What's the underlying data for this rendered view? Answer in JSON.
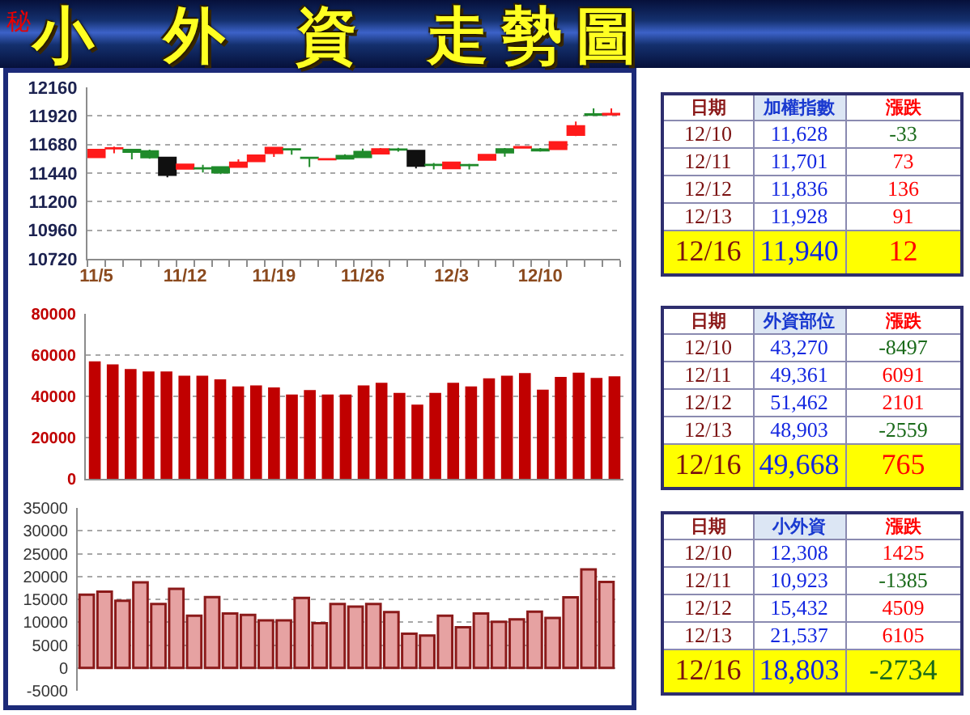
{
  "chart_data": [
    {
      "type": "candlestick",
      "title": "小 外 資 走勢圖",
      "annotations": [
        "秘"
      ],
      "categories": [
        "11/5",
        null,
        null,
        null,
        null,
        "11/12",
        null,
        null,
        null,
        null,
        "11/19",
        null,
        null,
        null,
        null,
        "11/26",
        null,
        null,
        null,
        null,
        "12/3",
        null,
        null,
        null,
        null,
        "12/10",
        null,
        null,
        null,
        null
      ],
      "ohlc": [
        [
          11573,
          11640,
          11570,
          11637
        ],
        [
          11645,
          11663,
          11607,
          11650
        ],
        [
          11637,
          11640,
          11556,
          11616
        ],
        [
          11625,
          11637,
          11560,
          11570
        ],
        [
          11570,
          11575,
          11405,
          11423
        ],
        [
          11475,
          11517,
          11470,
          11513
        ],
        [
          11482,
          11509,
          11445,
          11478
        ],
        [
          11491,
          11495,
          11431,
          11444
        ],
        [
          11491,
          11556,
          11488,
          11530
        ],
        [
          11538,
          11595,
          11535,
          11590
        ],
        [
          11607,
          11660,
          11575,
          11654
        ],
        [
          11642,
          11645,
          11594,
          11637
        ],
        [
          11570,
          11575,
          11491,
          11565
        ],
        [
          11553,
          11562,
          11550,
          11558
        ],
        [
          11586,
          11598,
          11558,
          11560
        ],
        [
          11620,
          11646,
          11570,
          11573
        ],
        [
          11603,
          11650,
          11600,
          11642
        ],
        [
          11640,
          11652,
          11620,
          11635
        ],
        [
          11629,
          11632,
          11479,
          11500
        ],
        [
          11512,
          11525,
          11470,
          11507
        ],
        [
          11479,
          11535,
          11475,
          11530
        ],
        [
          11510,
          11518,
          11470,
          11505
        ],
        [
          11551,
          11600,
          11548,
          11594
        ],
        [
          11642,
          11650,
          11577,
          11612
        ],
        [
          11652,
          11665,
          11645,
          11661
        ],
        [
          11640,
          11650,
          11620,
          11628
        ],
        [
          11640,
          11705,
          11635,
          11701
        ],
        [
          11760,
          11873,
          11750,
          11836
        ],
        [
          11935,
          11984,
          11920,
          11928
        ],
        [
          11930,
          11984,
          11925,
          11940
        ]
      ],
      "colors": [
        "#ff1a1a",
        "#ff1a1a",
        "#1f8a2a",
        "#1f8a2a",
        "#101010",
        "#ff1a1a",
        "#1f8a2a",
        "#1f8a2a",
        "#ff1a1a",
        "#ff1a1a",
        "#ff1a1a",
        "#1f8a2a",
        "#1f8a2a",
        "#ff1a1a",
        "#1f8a2a",
        "#1f8a2a",
        "#ff1a1a",
        "#1f8a2a",
        "#101010",
        "#1f8a2a",
        "#ff1a1a",
        "#1f8a2a",
        "#ff1a1a",
        "#1f8a2a",
        "#ff1a1a",
        "#1f8a2a",
        "#ff1a1a",
        "#ff1a1a",
        "#1f8a2a",
        "#ff1a1a"
      ],
      "ylim": [
        10720,
        12160
      ],
      "yticks": [
        10720,
        10960,
        11200,
        11440,
        11680,
        11920,
        12160
      ],
      "grid": "y"
    },
    {
      "type": "bar",
      "categories": [
        null,
        null,
        null,
        null,
        null,
        null,
        null,
        null,
        null,
        null,
        null,
        null,
        null,
        null,
        null,
        null,
        null,
        null,
        null,
        null,
        null,
        null,
        null,
        null,
        null,
        null,
        null,
        null,
        null,
        null
      ],
      "values": [
        57000,
        55500,
        53200,
        52100,
        52100,
        50000,
        50000,
        48200,
        44800,
        45300,
        44300,
        40900,
        43000,
        40900,
        40900,
        45300,
        46600,
        41700,
        36000,
        41700,
        46600,
        44800,
        48700,
        50000,
        51300,
        43270,
        49361,
        51462,
        48903,
        49668
      ],
      "color": "#c00000",
      "ylim": [
        0,
        80000
      ],
      "yticks": [
        0,
        20000,
        40000,
        60000,
        80000
      ],
      "grid": "y"
    },
    {
      "type": "bar",
      "categories": [
        null,
        null,
        null,
        null,
        null,
        null,
        null,
        null,
        null,
        null,
        null,
        null,
        null,
        null,
        null,
        null,
        null,
        null,
        null,
        null,
        null,
        null,
        null,
        null,
        null,
        null,
        null,
        null,
        null,
        null
      ],
      "values": [
        16000,
        16700,
        14700,
        18700,
        14000,
        17300,
        11400,
        15500,
        11900,
        11600,
        10400,
        10400,
        15300,
        9800,
        14000,
        13400,
        14000,
        12200,
        7500,
        7100,
        11400,
        8900,
        11900,
        10100,
        10600,
        12308,
        10923,
        15432,
        21537,
        18803
      ],
      "color": "#e6a2a2",
      "ylim": [
        -5000,
        35000
      ],
      "yticks": [
        -5000,
        0,
        5000,
        10000,
        15000,
        20000,
        25000,
        30000,
        35000
      ],
      "grid": "y"
    },
    {
      "type": "heatmap",
      "ylabel": "日期",
      "categories": [
        "加權指數",
        "漲跌"
      ],
      "y_categories": [
        "12/10",
        "12/11",
        "12/12",
        "12/13",
        "12/16"
      ],
      "cells": [
        [
          11628,
          -33
        ],
        [
          11701,
          73
        ],
        [
          11836,
          136
        ],
        [
          11928,
          91
        ],
        [
          11940,
          12
        ]
      ],
      "cell_labels": [
        [
          "11,628",
          "-33"
        ],
        [
          "11,701",
          "73"
        ],
        [
          "11,836",
          "136"
        ],
        [
          "11,928",
          "91"
        ],
        [
          "11,940",
          "12"
        ]
      ]
    },
    {
      "type": "heatmap",
      "ylabel": "日期",
      "categories": [
        "外資部位",
        "漲跌"
      ],
      "y_categories": [
        "12/10",
        "12/11",
        "12/12",
        "12/13",
        "12/16"
      ],
      "cells": [
        [
          43270,
          -8497
        ],
        [
          49361,
          6091
        ],
        [
          51462,
          2101
        ],
        [
          48903,
          -2559
        ],
        [
          49668,
          765
        ]
      ],
      "cell_labels": [
        [
          "43,270",
          "-8497"
        ],
        [
          "49,361",
          "6091"
        ],
        [
          "51,462",
          "2101"
        ],
        [
          "48,903",
          "-2559"
        ],
        [
          "49,668",
          "765"
        ]
      ]
    },
    {
      "type": "heatmap",
      "ylabel": "日期",
      "categories": [
        "小外資",
        "漲跌"
      ],
      "y_categories": [
        "12/10",
        "12/11",
        "12/12",
        "12/13",
        "12/16"
      ],
      "cells": [
        [
          12308,
          1425
        ],
        [
          10923,
          -1385
        ],
        [
          15432,
          4509
        ],
        [
          21537,
          6105
        ],
        [
          18803,
          -2734
        ]
      ],
      "cell_labels": [
        [
          "12,308",
          "1425"
        ],
        [
          "10,923",
          "-1385"
        ],
        [
          "15,432",
          "4509"
        ],
        [
          "21,537",
          "6105"
        ],
        [
          "18,803",
          "-2734"
        ]
      ]
    }
  ]
}
